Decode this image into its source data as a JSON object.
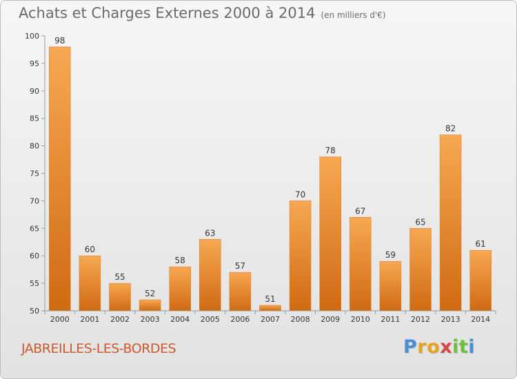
{
  "header": {
    "title": "Achats et Charges Externes 2000 à 2014",
    "unit": "(en milliers d'€)"
  },
  "footer": {
    "city": "JABREILLES-LES-BORDES",
    "logo_letters": [
      "P",
      "r",
      "o",
      "x",
      "i",
      "t",
      "i"
    ],
    "logo_colors": [
      "#4a8fd6",
      "#e6a51e",
      "#e6a51e",
      "#d94545",
      "#6bbf3a",
      "#6bbf3a",
      "#4a8fd6"
    ]
  },
  "colors": {
    "bar_top": "#f7a852",
    "bar_bottom": "#d06a12",
    "axis": "#9a9a9a",
    "grid": "#d6d6d6",
    "tick_text": "#333333",
    "title": "#6a6a6a",
    "city": "#cc5a2e"
  },
  "chart_data": {
    "type": "bar",
    "title": "Achats et Charges Externes 2000 à 2014",
    "subtitle": "(en milliers d'€)",
    "xlabel": "",
    "ylabel": "",
    "categories": [
      "2000",
      "2001",
      "2002",
      "2003",
      "2004",
      "2005",
      "2006",
      "2007",
      "2008",
      "2009",
      "2010",
      "2011",
      "2012",
      "2013",
      "2014"
    ],
    "values": [
      98,
      60,
      55,
      52,
      58,
      63,
      57,
      51,
      70,
      78,
      67,
      59,
      65,
      82,
      61
    ],
    "ylim": [
      50,
      100
    ],
    "yticks": [
      50,
      55,
      60,
      65,
      70,
      75,
      80,
      85,
      90,
      95,
      100
    ],
    "grid": false,
    "data_labels": true
  }
}
